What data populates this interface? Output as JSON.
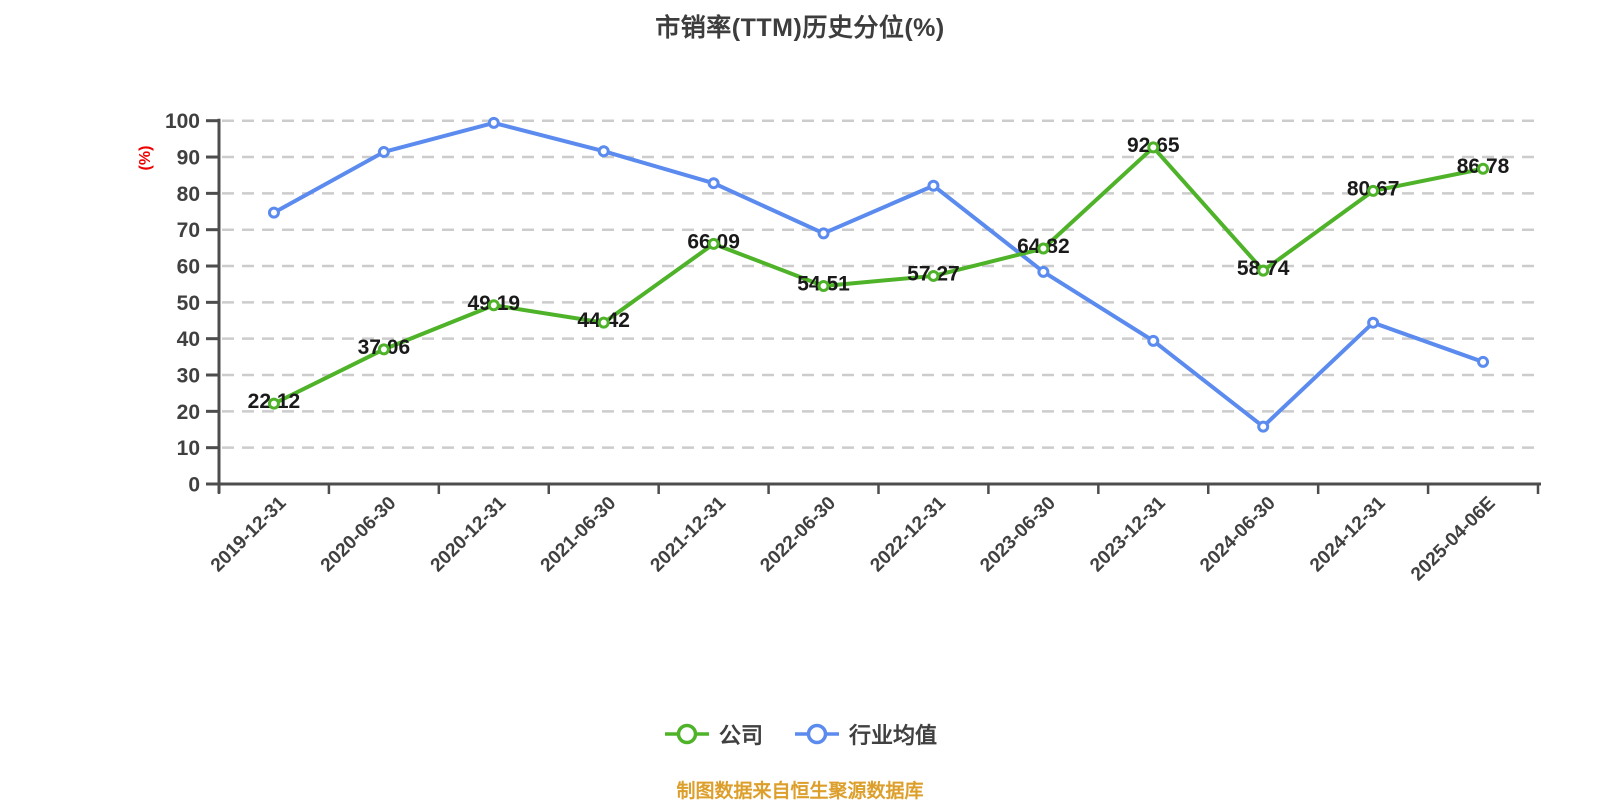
{
  "title": "市销率(TTM)历史分位(%)",
  "footer": "制图数据来自恒生聚源数据库",
  "colors": {
    "background": "#ffffff",
    "title": "#3d3d3d",
    "axis": "#4d4d4d",
    "tick_label": "#404040",
    "grid": "#cccccc",
    "data_label": "#1a1a1a",
    "unit_label": "#ee0000",
    "footer": "#dd9f2b",
    "company": "#4fb32a",
    "industry": "#5b8bee"
  },
  "chart_data": {
    "type": "line",
    "title": "市销率(TTM)历史分位(%)",
    "xlabel": "",
    "ylabel": "(%)",
    "ylim": [
      0,
      100
    ],
    "y_tick_step": 10,
    "grid": "horizontal-dashed",
    "legend_position": "bottom",
    "x_label_rotation_deg": 45,
    "categories": [
      "2019-12-31",
      "2020-06-30",
      "2020-12-31",
      "2021-06-30",
      "2021-12-31",
      "2022-06-30",
      "2022-12-31",
      "2023-06-30",
      "2023-12-31",
      "2024-06-30",
      "2024-12-31",
      "2025-04-06E"
    ],
    "series": [
      {
        "name": "公司",
        "color": "#4fb32a",
        "show_value_labels": true,
        "values": [
          22.12,
          37.06,
          49.19,
          44.42,
          66.09,
          54.51,
          57.27,
          64.82,
          92.65,
          58.74,
          80.67,
          86.78
        ]
      },
      {
        "name": "行业均值",
        "color": "#5b8bee",
        "show_value_labels": false,
        "values": [
          74.7,
          91.4,
          99.4,
          91.6,
          82.8,
          69.0,
          82.1,
          58.4,
          39.4,
          15.8,
          44.4,
          33.6
        ]
      }
    ]
  }
}
